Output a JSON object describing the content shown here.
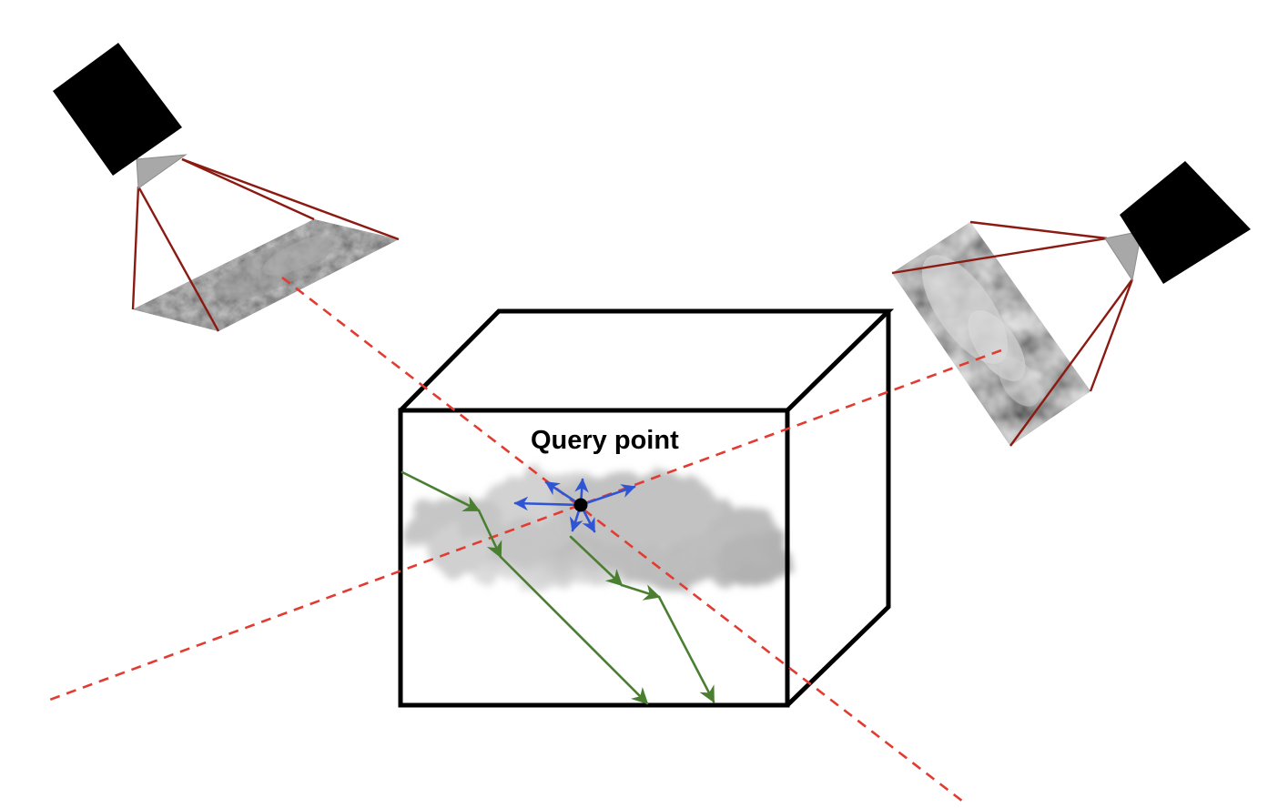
{
  "labels": {
    "query_point": "Query point"
  },
  "colors": {
    "box_outline": "#000000",
    "light_path": "#4a7f32",
    "direction_arrows": "#2f55d4",
    "view_ray": "#e23b32",
    "camera_frustum": "#8b1a12",
    "camera_body": "#000000",
    "camera_lens": "#a8a8a8",
    "query_marker": "#000000"
  },
  "icons": {
    "camera_left": "camera-icon",
    "camera_right": "camera-icon",
    "cloud": "cloud-volume",
    "query_point": "query-point-marker"
  }
}
